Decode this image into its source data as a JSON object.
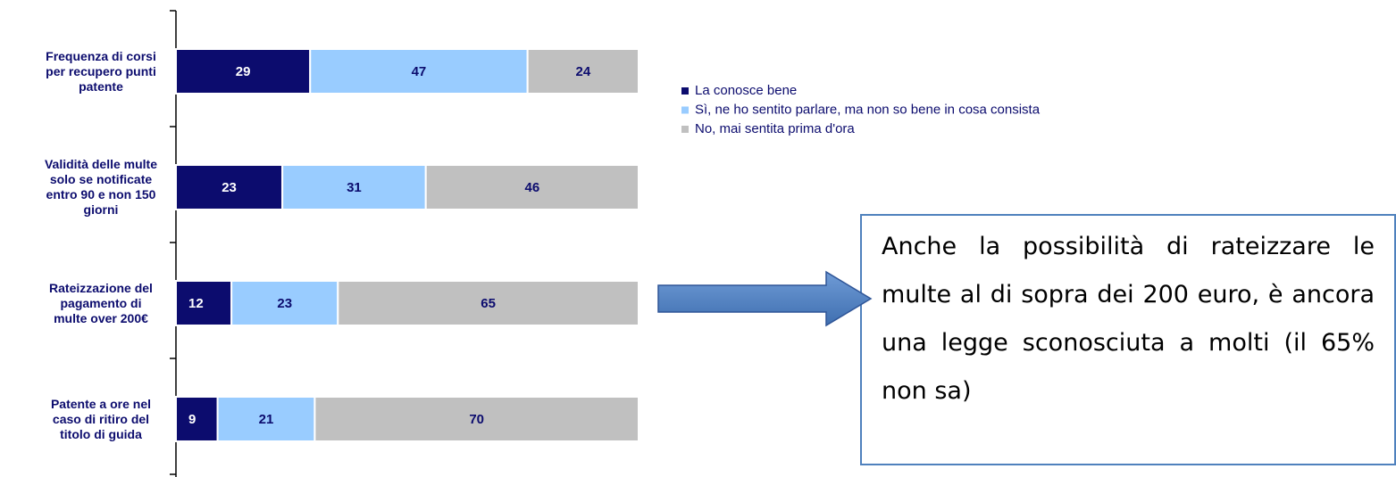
{
  "chart_data": {
    "type": "stacked-barh",
    "categories": [
      "Frequenza di corsi per recupero punti patente",
      "Validità delle multe solo se notificate entro 90 e non 150 giorni",
      "Rateizzazione del pagamento di multe over 200€",
      "Patente a ore nel caso di ritiro del titolo di guida"
    ],
    "series": [
      {
        "name": "La conosce bene",
        "color": "#0c0c6e",
        "label_color": "#ffffff",
        "values": [
          29,
          23,
          12,
          9
        ]
      },
      {
        "name": "Sì, ne ho sentito parlare, ma non so bene in cosa consista",
        "color": "#99ccff",
        "label_color": "#0c0c6e",
        "values": [
          47,
          31,
          23,
          21
        ]
      },
      {
        "name": "No, mai sentita prima d'ora",
        "color": "#c0c0c0",
        "label_color": "#0c0c6e",
        "values": [
          24,
          46,
          65,
          70
        ]
      }
    ],
    "xlim": [
      0,
      100
    ],
    "legend": "right",
    "annotation": "Anche la possibilità di rateizzare le multe al di sopra dei 200 euro, è ancora una legge sconosciuta a molti (il 65% non sa)"
  }
}
